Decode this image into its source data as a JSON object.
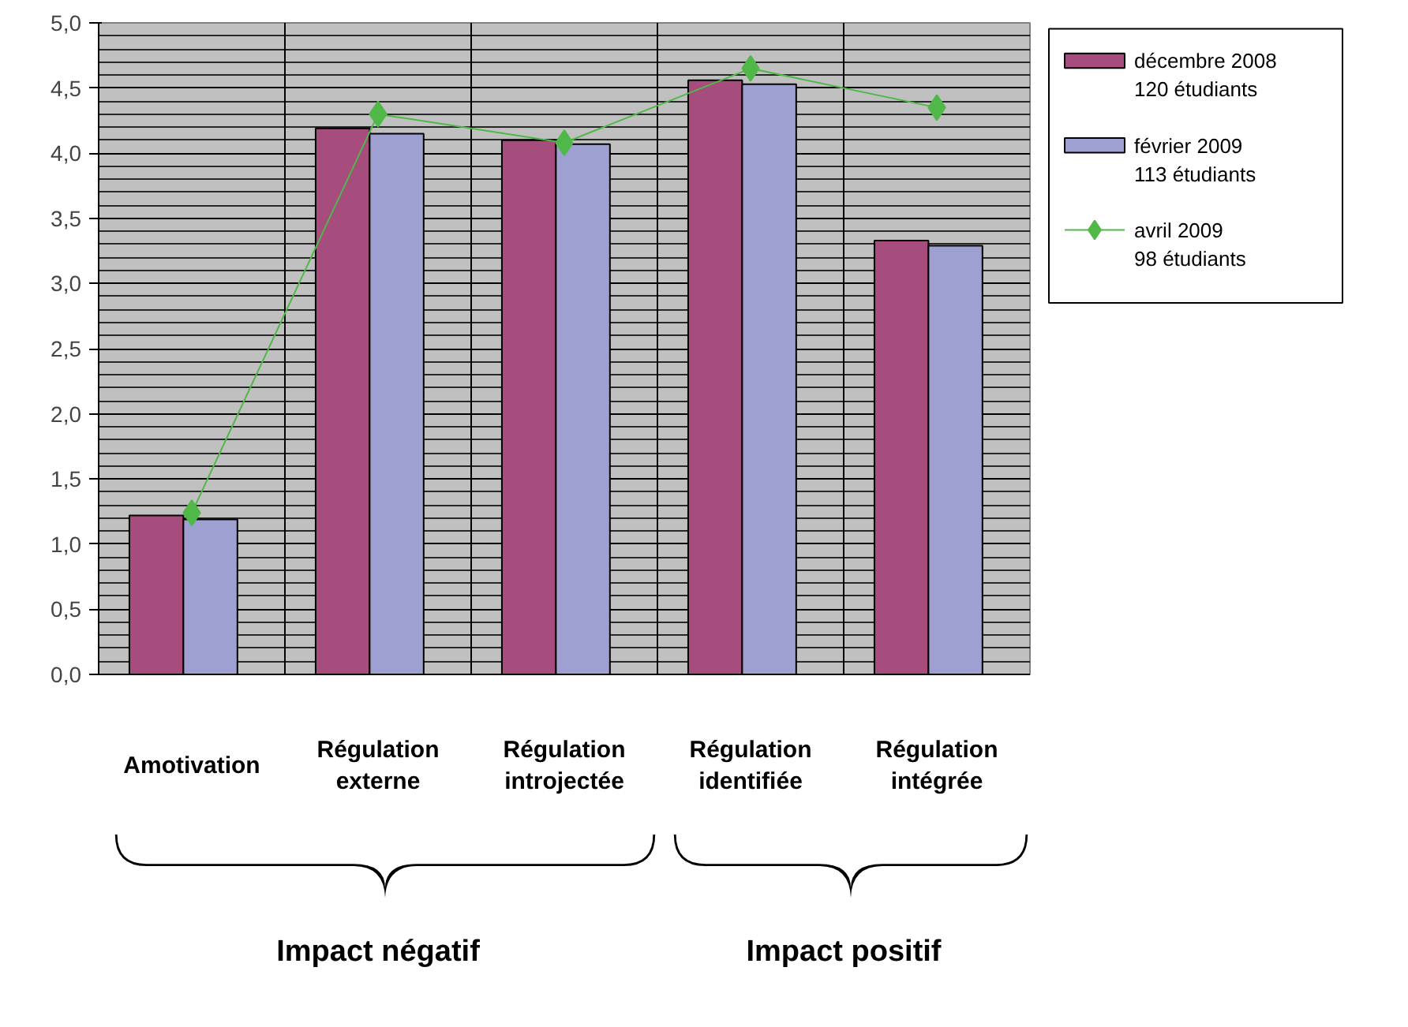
{
  "chart_data": {
    "type": "bar",
    "categories": [
      "Amotivation",
      "Régulation\nexterne",
      "Régulation\nintrojectée",
      "Régulation\nidentifiée",
      "Régulation\nintégrée"
    ],
    "series": [
      {
        "name": "décembre 2008\n120 étudiants",
        "color": "#a64d7e",
        "values": [
          1.22,
          4.19,
          4.1,
          4.56,
          3.33
        ]
      },
      {
        "name": "février 2009\n113 étudiants",
        "color": "#9fa0d2",
        "values": [
          1.19,
          4.15,
          4.07,
          4.53,
          3.29
        ]
      },
      {
        "name": "avril 2009\n98 étudiants",
        "color": "#50b848",
        "type": "line",
        "marker": "diamond",
        "values": [
          1.24,
          4.3,
          4.08,
          4.65,
          4.35
        ]
      }
    ],
    "ylim": [
      0,
      5
    ],
    "yticks": [
      {
        "value": 0,
        "label": "0,0"
      },
      {
        "value": 0.5,
        "label": "0,5"
      },
      {
        "value": 1,
        "label": "1,0"
      },
      {
        "value": 1.5,
        "label": "1,5"
      },
      {
        "value": 2,
        "label": "2,0"
      },
      {
        "value": 2.5,
        "label": "2,5"
      },
      {
        "value": 3,
        "label": "3,0"
      },
      {
        "value": 3.5,
        "label": "3,5"
      },
      {
        "value": 4,
        "label": "4,0"
      },
      {
        "value": 4.5,
        "label": "4,5"
      },
      {
        "value": 5,
        "label": "5,0"
      }
    ],
    "grid": true,
    "legend": "top right",
    "annotations": [
      "Impact négatif",
      "Impact positif"
    ]
  }
}
